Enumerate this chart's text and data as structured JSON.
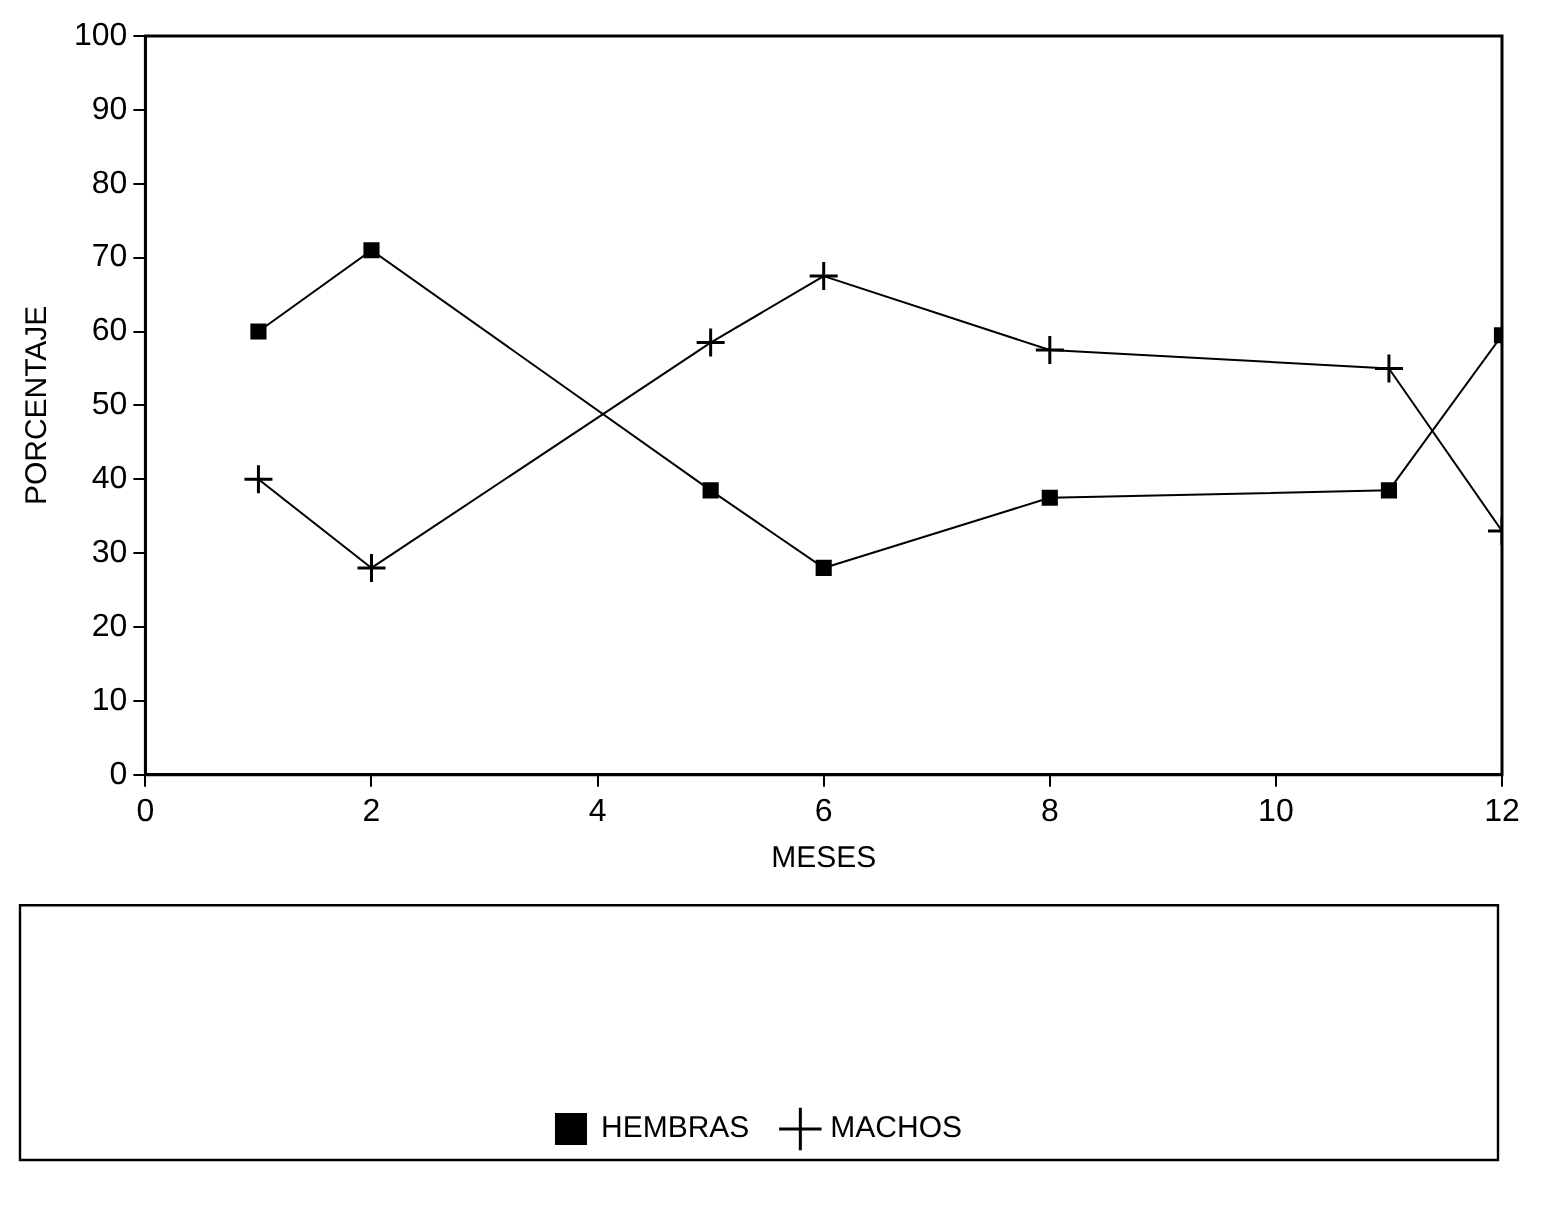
{
  "chart_data": {
    "type": "line",
    "xlabel": "MESES",
    "ylabel": "PORCENTAJE",
    "x": [
      1,
      2,
      5,
      6,
      8,
      11,
      12
    ],
    "series": [
      {
        "name": "HEMBRAS",
        "color": "#000000",
        "marker": "square",
        "values": [
          60,
          71,
          38.5,
          28,
          37.5,
          38.5,
          59.5
        ]
      },
      {
        "name": "MACHOS",
        "color": "#000000",
        "marker": "cross",
        "values": [
          40,
          28,
          58.5,
          67.5,
          57.5,
          55,
          33
        ]
      }
    ],
    "xlim": [
      0,
      12
    ],
    "xticks": [
      0,
      2,
      4,
      6,
      8,
      10,
      12
    ],
    "ylim": [
      0,
      100
    ],
    "yticks": [
      0,
      10,
      20,
      30,
      40,
      50,
      60,
      70,
      80,
      90,
      100
    ],
    "grid": false,
    "legend": "bottom",
    "line_style": "solid"
  }
}
